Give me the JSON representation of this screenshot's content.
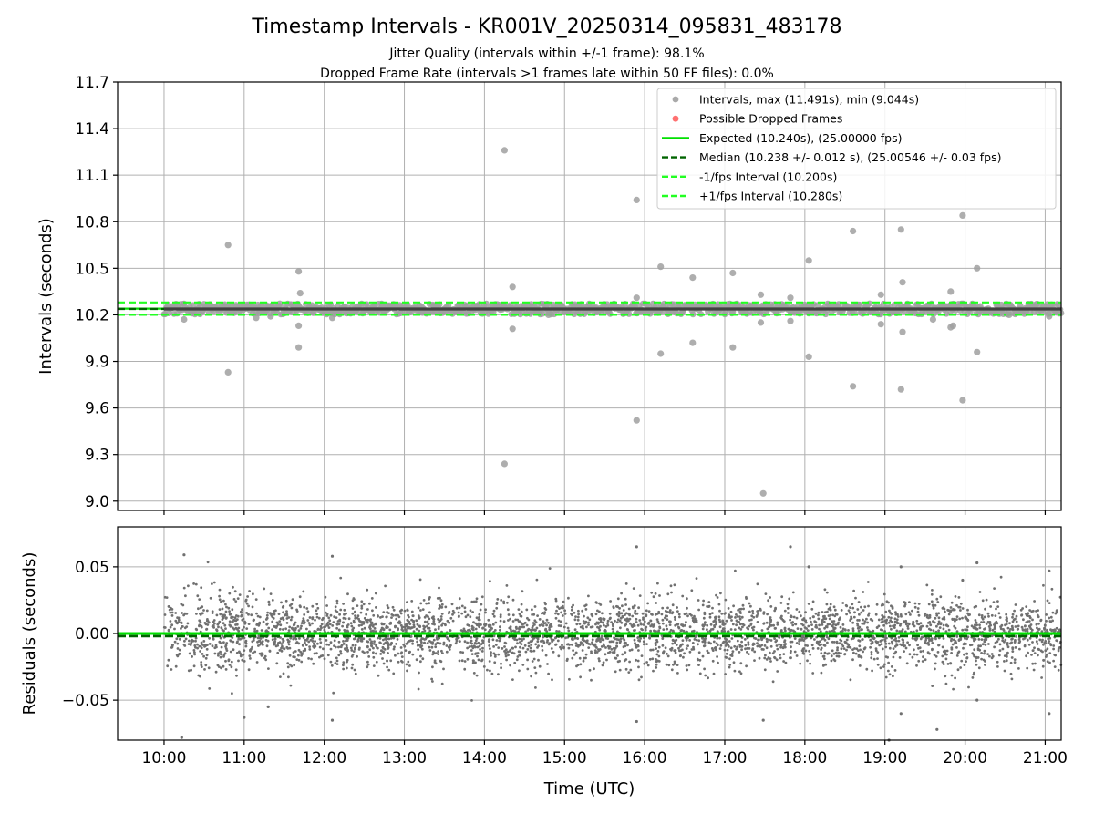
{
  "figure": {
    "title": "Timestamp Intervals - KR001V_20250314_095831_483178",
    "subtitle_line1": "Jitter Quality (intervals within +/-1 frame): 98.1%",
    "subtitle_line2": "Dropped Frame Rate (intervals >1 frames late within 50 FF files): 0.0%"
  },
  "colors": {
    "points": "#808080",
    "dropped": "#ff4040",
    "expected": "#00e000",
    "median": "#006400",
    "interval_bounds": "#22ff22",
    "grid": "#b0b0b0"
  },
  "chart_data": [
    {
      "type": "scatter",
      "ylabel": "Intervals (seconds)",
      "ylim": [
        8.94,
        11.7
      ],
      "yticks": [
        9.0,
        9.3,
        9.6,
        9.9,
        10.2,
        10.5,
        10.8,
        11.1,
        11.4,
        11.7
      ],
      "ytick_labels": [
        "9.0",
        "9.3",
        "9.6",
        "9.9",
        "10.2",
        "10.5",
        "10.8",
        "11.1",
        "11.4",
        "11.7"
      ],
      "xlim_hours": [
        9.42,
        21.2
      ],
      "grid": true,
      "legend_placement": "upper right",
      "legend": [
        {
          "kind": "dot",
          "color": "#a0a0a0",
          "label": "Intervals, max (11.491s), min (9.044s)"
        },
        {
          "kind": "dot",
          "color": "#ff6060",
          "label": "Possible Dropped Frames"
        },
        {
          "kind": "solid",
          "color": "#00e000",
          "label": "Expected (10.240s), (25.00000 fps)"
        },
        {
          "kind": "dashed",
          "color": "#006400",
          "label": "Median (10.238 +/- 0.012 s), (25.00546 +/- 0.03 fps)"
        },
        {
          "kind": "dashed",
          "color": "#22ff22",
          "label": "-1/fps Interval (10.200s)"
        },
        {
          "kind": "dashed",
          "color": "#22ff22",
          "label": "+1/fps Interval (10.280s)"
        }
      ],
      "reference_lines": {
        "expected": 10.24,
        "median": 10.238,
        "lower": 10.2,
        "upper": 10.28
      },
      "dense_band": {
        "center": 10.238,
        "half_width": 0.035,
        "x_start": 10.0,
        "x_end": 21.2
      },
      "outliers": [
        {
          "x": 10.25,
          "y": 10.17
        },
        {
          "x": 10.8,
          "y": 10.65
        },
        {
          "x": 10.8,
          "y": 9.83
        },
        {
          "x": 11.15,
          "y": 10.18
        },
        {
          "x": 11.33,
          "y": 10.19
        },
        {
          "x": 11.68,
          "y": 10.48
        },
        {
          "x": 11.7,
          "y": 10.34
        },
        {
          "x": 11.68,
          "y": 10.13
        },
        {
          "x": 11.68,
          "y": 9.99
        },
        {
          "x": 12.1,
          "y": 10.18
        },
        {
          "x": 14.25,
          "y": 11.26
        },
        {
          "x": 14.35,
          "y": 10.38
        },
        {
          "x": 14.35,
          "y": 10.11
        },
        {
          "x": 14.25,
          "y": 9.24
        },
        {
          "x": 14.8,
          "y": 10.2
        },
        {
          "x": 15.9,
          "y": 10.94
        },
        {
          "x": 15.9,
          "y": 10.31
        },
        {
          "x": 15.9,
          "y": 9.52
        },
        {
          "x": 16.2,
          "y": 10.51
        },
        {
          "x": 16.2,
          "y": 9.95
        },
        {
          "x": 16.6,
          "y": 10.44
        },
        {
          "x": 16.6,
          "y": 10.02
        },
        {
          "x": 17.1,
          "y": 10.47
        },
        {
          "x": 17.1,
          "y": 9.99
        },
        {
          "x": 17.45,
          "y": 10.33
        },
        {
          "x": 17.45,
          "y": 10.15
        },
        {
          "x": 17.48,
          "y": 9.05
        },
        {
          "x": 17.82,
          "y": 10.31
        },
        {
          "x": 17.82,
          "y": 10.16
        },
        {
          "x": 18.05,
          "y": 10.55
        },
        {
          "x": 18.05,
          "y": 9.93
        },
        {
          "x": 18.6,
          "y": 10.74
        },
        {
          "x": 18.6,
          "y": 9.74
        },
        {
          "x": 18.95,
          "y": 10.33
        },
        {
          "x": 18.95,
          "y": 10.14
        },
        {
          "x": 19.2,
          "y": 10.75
        },
        {
          "x": 19.22,
          "y": 10.41
        },
        {
          "x": 19.22,
          "y": 10.09
        },
        {
          "x": 19.2,
          "y": 9.72
        },
        {
          "x": 19.6,
          "y": 10.17
        },
        {
          "x": 19.82,
          "y": 10.35
        },
        {
          "x": 19.85,
          "y": 10.13
        },
        {
          "x": 19.82,
          "y": 10.12
        },
        {
          "x": 19.97,
          "y": 10.84
        },
        {
          "x": 19.97,
          "y": 9.65
        },
        {
          "x": 20.15,
          "y": 10.5
        },
        {
          "x": 20.15,
          "y": 9.96
        },
        {
          "x": 20.55,
          "y": 10.2
        },
        {
          "x": 21.05,
          "y": 10.19
        }
      ]
    },
    {
      "type": "scatter",
      "ylabel": "Residuals (seconds)",
      "xlabel": "Time (UTC)",
      "ylim": [
        -0.08,
        0.08
      ],
      "yticks": [
        -0.05,
        0.0,
        0.05
      ],
      "ytick_labels": [
        "−0.05",
        "0.00",
        "0.05"
      ],
      "xlim_hours": [
        9.42,
        21.2
      ],
      "xticks": [
        10,
        11,
        12,
        13,
        14,
        15,
        16,
        17,
        18,
        19,
        20,
        21
      ],
      "xtick_labels": [
        "10:00",
        "11:00",
        "12:00",
        "13:00",
        "14:00",
        "15:00",
        "16:00",
        "17:00",
        "18:00",
        "19:00",
        "20:00",
        "21:00"
      ],
      "grid": true,
      "reference_lines": {
        "expected": 0.0,
        "median": -0.002
      },
      "noise_band": {
        "std": 0.013,
        "x_start": 10.0,
        "x_end": 21.2,
        "count": 3900
      },
      "outliers": [
        {
          "x": 10.25,
          "y": 0.059
        },
        {
          "x": 10.22,
          "y": -0.078
        },
        {
          "x": 11.0,
          "y": -0.063
        },
        {
          "x": 11.3,
          "y": -0.055
        },
        {
          "x": 12.1,
          "y": 0.058
        },
        {
          "x": 12.1,
          "y": -0.065
        },
        {
          "x": 15.9,
          "y": 0.065
        },
        {
          "x": 15.9,
          "y": -0.066
        },
        {
          "x": 17.48,
          "y": -0.065
        },
        {
          "x": 17.82,
          "y": 0.065
        },
        {
          "x": 18.05,
          "y": 0.05
        },
        {
          "x": 19.05,
          "y": -0.08
        },
        {
          "x": 19.2,
          "y": 0.05
        },
        {
          "x": 19.2,
          "y": -0.06
        },
        {
          "x": 19.65,
          "y": -0.072
        },
        {
          "x": 19.97,
          "y": 0.04
        },
        {
          "x": 20.15,
          "y": 0.053
        },
        {
          "x": 20.15,
          "y": -0.05
        },
        {
          "x": 21.05,
          "y": 0.047
        },
        {
          "x": 21.05,
          "y": -0.06
        }
      ]
    }
  ]
}
